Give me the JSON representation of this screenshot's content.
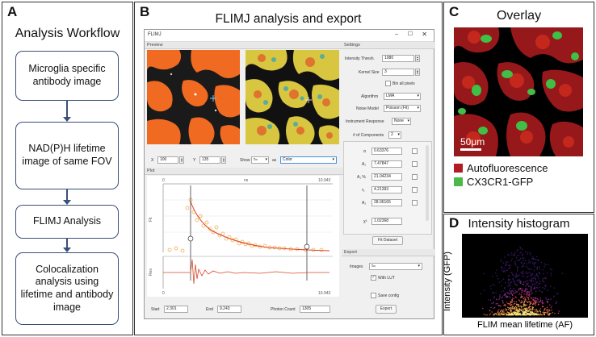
{
  "panelA": {
    "letter": "A",
    "title": "Analysis Workflow",
    "steps": [
      "Microglia specific antibody image",
      "NAD(P)H lifetime image of same FOV",
      "FLIMJ Analysis",
      "Colocalization analysis using lifetime and antibody image"
    ]
  },
  "panelB": {
    "letter": "B",
    "title": "FLIMJ analysis and export",
    "window": {
      "title": "FLIMJ",
      "preview_label": "Preview",
      "plot_label": "Plot",
      "settings_label": "Settings",
      "export_label": "Export",
      "x_label": "X",
      "x_value": "100",
      "y_label": "Y",
      "y_value": "135",
      "show_label": "Show",
      "show_value": "τₘ",
      "as_label": "as",
      "as_value": "Color",
      "start_label": "Start",
      "start_value": "2.301",
      "end_label": "End",
      "end_value": "9.243",
      "photon_label": "Photon Count",
      "photon_value": "1305",
      "settings": {
        "intensity_label": "Intensity Thresh.",
        "intensity_value": "1080",
        "kernel_label": "Kernel Size",
        "kernel_value": "3",
        "bin_label": "Bin all pixels",
        "algorithm_label": "Algorithm",
        "algorithm_value": "LMA",
        "noise_label": "Noise Model",
        "noise_value": "Poisson (Fit)",
        "irf_label": "Instrument Response",
        "irf_value": "None",
        "components_label": "# of Components",
        "components_value": "2",
        "params": [
          {
            "name": "α",
            "value": "0.63376"
          },
          {
            "name": "A₁",
            "value": "7.47847"
          },
          {
            "name": "A₁ %",
            "value": "21.04234"
          },
          {
            "name": "τ₁",
            "value": "4.21393"
          },
          {
            "name": "A₂",
            "value": "28.06165"
          }
        ],
        "chi_label": "χ²",
        "chi_value": "1.02368",
        "fit_button": "Fit Dataset"
      },
      "export": {
        "images_label": "Images",
        "images_value": "τₘ",
        "lut_label": "With LUT",
        "save_config_label": "Save config",
        "export_button": "Export"
      },
      "plot": {
        "top_axis_label": "ns",
        "fit_axis_label": "Fit",
        "res_axis_label": "Res",
        "tick_0": "0",
        "tick_end": "10.943"
      }
    }
  },
  "panelC": {
    "letter": "C",
    "title": "Overlay",
    "scalebar": "50μm",
    "legend": [
      {
        "label": "Autofluorescence",
        "color": "#b01c22"
      },
      {
        "label": "CX3CR1-GFP",
        "color": "#4cb84a"
      }
    ]
  },
  "panelD": {
    "letter": "D",
    "title": "Intensity histogram",
    "xlabel": "FLIM mean lifetime (AF)",
    "ylabel": "Intensity (GFP)"
  }
}
